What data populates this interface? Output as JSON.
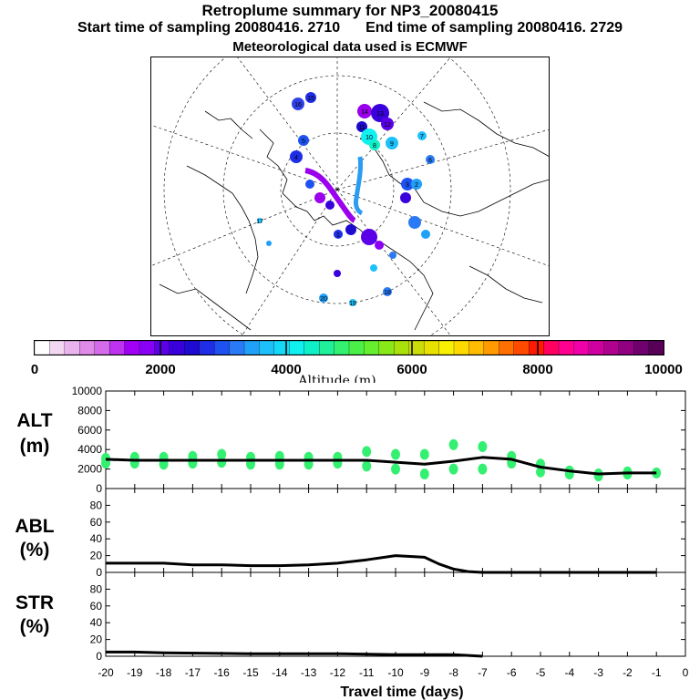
{
  "title": "Retroplume summary for NP3_20080415",
  "start_label": "Start time of sampling 20080416.  2710",
  "end_label": "End time of sampling 20080416.  2729",
  "met_label": "Meteorological data used is ECMWF",
  "colorbar": {
    "label": "Altitude (m)",
    "ticks": [
      "0",
      "2000",
      "4000",
      "6000",
      "8000",
      "10000"
    ],
    "colors": [
      "#ffffff",
      "#f2d6f2",
      "#e9b3ee",
      "#e08be8",
      "#d36bea",
      "#bd33f0",
      "#a100f7",
      "#8a00f5",
      "#5c00e8",
      "#3a00dc",
      "#1e0ad0",
      "#1f2ee6",
      "#1e52f0",
      "#2a7af5",
      "#20a0f8",
      "#1ec0fa",
      "#15d8f8",
      "#10f0f0",
      "#10f0c8",
      "#20f09a",
      "#33f070",
      "#4af048",
      "#66ee2e",
      "#88e818",
      "#aae00c",
      "#ccdc08",
      "#e8e000",
      "#f8f000",
      "#ffd800",
      "#ffbc00",
      "#ff9a00",
      "#ff7000",
      "#ff4a00",
      "#ff1a00",
      "#ff0060",
      "#ff0090",
      "#f000a8",
      "#d000a0",
      "#b00090",
      "#900080",
      "#700070",
      "#580058"
    ]
  },
  "map_labels": [
    "16",
    "15",
    "14",
    "13",
    "12",
    "11",
    "10",
    "9",
    "8",
    "7",
    "6",
    "5",
    "4",
    "3",
    "2",
    "1",
    "20",
    "19",
    "18",
    "17"
  ],
  "x_axis": {
    "label": "Travel time (days)",
    "ticks": [
      "-20",
      "-19",
      "-18",
      "-17",
      "-16",
      "-15",
      "-14",
      "-13",
      "-12",
      "-11",
      "-10",
      "-9",
      "-8",
      "-7",
      "-6",
      "-5",
      "-4",
      "-3",
      "-2",
      "-1",
      "0"
    ]
  },
  "chart_data": [
    {
      "type": "line",
      "title": "ALT",
      "ylabel": "ALT (m)",
      "ylabel_line1": "ALT",
      "ylabel_line2": "(m)",
      "xlim": [
        -20,
        0
      ],
      "ylim": [
        0,
        10000
      ],
      "yticks": [
        0,
        2000,
        4000,
        6000,
        8000,
        10000
      ],
      "x": [
        -20,
        -19,
        -18,
        -17,
        -16,
        -15,
        -14,
        -13,
        -12,
        -11,
        -10,
        -9,
        -8,
        -7,
        -6,
        -5,
        -4,
        -3,
        -2,
        -1
      ],
      "values": [
        3000,
        2900,
        2900,
        2900,
        2900,
        2900,
        2900,
        2900,
        2900,
        2900,
        2700,
        2500,
        2800,
        3200,
        3000,
        2200,
        1800,
        1500,
        1600,
        1600
      ],
      "cluster_points": [
        {
          "x": -20,
          "y": 3100
        },
        {
          "x": -20,
          "y": 2600
        },
        {
          "x": -19,
          "y": 3200
        },
        {
          "x": -19,
          "y": 2600
        },
        {
          "x": -18,
          "y": 3200
        },
        {
          "x": -18,
          "y": 2500
        },
        {
          "x": -17,
          "y": 3300
        },
        {
          "x": -17,
          "y": 2600
        },
        {
          "x": -16,
          "y": 3500
        },
        {
          "x": -16,
          "y": 2700
        },
        {
          "x": -15,
          "y": 3200
        },
        {
          "x": -15,
          "y": 2500
        },
        {
          "x": -14,
          "y": 3300
        },
        {
          "x": -14,
          "y": 2500
        },
        {
          "x": -13,
          "y": 3200
        },
        {
          "x": -13,
          "y": 2500
        },
        {
          "x": -12,
          "y": 3200
        },
        {
          "x": -12,
          "y": 2600
        },
        {
          "x": -11,
          "y": 3800
        },
        {
          "x": -11,
          "y": 2300
        },
        {
          "x": -10,
          "y": 3500
        },
        {
          "x": -10,
          "y": 2000
        },
        {
          "x": -9,
          "y": 3500
        },
        {
          "x": -9,
          "y": 1500
        },
        {
          "x": -8,
          "y": 4500
        },
        {
          "x": -8,
          "y": 2000
        },
        {
          "x": -7,
          "y": 4300
        },
        {
          "x": -7,
          "y": 2000
        },
        {
          "x": -6,
          "y": 3300
        },
        {
          "x": -6,
          "y": 2600
        },
        {
          "x": -5,
          "y": 2500
        },
        {
          "x": -5,
          "y": 1700
        },
        {
          "x": -4,
          "y": 1800
        },
        {
          "x": -4,
          "y": 1500
        },
        {
          "x": -3,
          "y": 1500
        },
        {
          "x": -3,
          "y": 1300
        },
        {
          "x": -2,
          "y": 1700
        },
        {
          "x": -2,
          "y": 1500
        },
        {
          "x": -1,
          "y": 1600
        }
      ]
    },
    {
      "type": "line",
      "title": "ABL",
      "ylabel": "ABL (%)",
      "ylabel_line1": "ABL",
      "ylabel_line2": "(%)",
      "xlim": [
        -20,
        0
      ],
      "ylim": [
        0,
        100
      ],
      "yticks": [
        0,
        20,
        40,
        60,
        80
      ],
      "x": [
        -20,
        -18,
        -17,
        -16,
        -15,
        -14,
        -13,
        -12,
        -11,
        -10,
        -9,
        -8.5,
        -8,
        -7.5,
        -7,
        -6,
        -1
      ],
      "values": [
        11,
        11,
        9,
        9,
        8,
        8,
        9,
        11,
        15,
        20,
        18,
        10,
        4,
        1,
        0,
        0,
        0
      ]
    },
    {
      "type": "line",
      "title": "STR",
      "ylabel": "STR (%)",
      "ylabel_line1": "STR",
      "ylabel_line2": "(%)",
      "xlim": [
        -20,
        0
      ],
      "ylim": [
        0,
        100
      ],
      "yticks": [
        0,
        20,
        40,
        60,
        80
      ],
      "x": [
        -20,
        -19,
        -18,
        -15,
        -12,
        -10,
        -8,
        -7.5,
        -7
      ],
      "values": [
        5,
        5,
        4,
        3,
        3,
        2,
        2,
        1,
        0
      ]
    }
  ]
}
